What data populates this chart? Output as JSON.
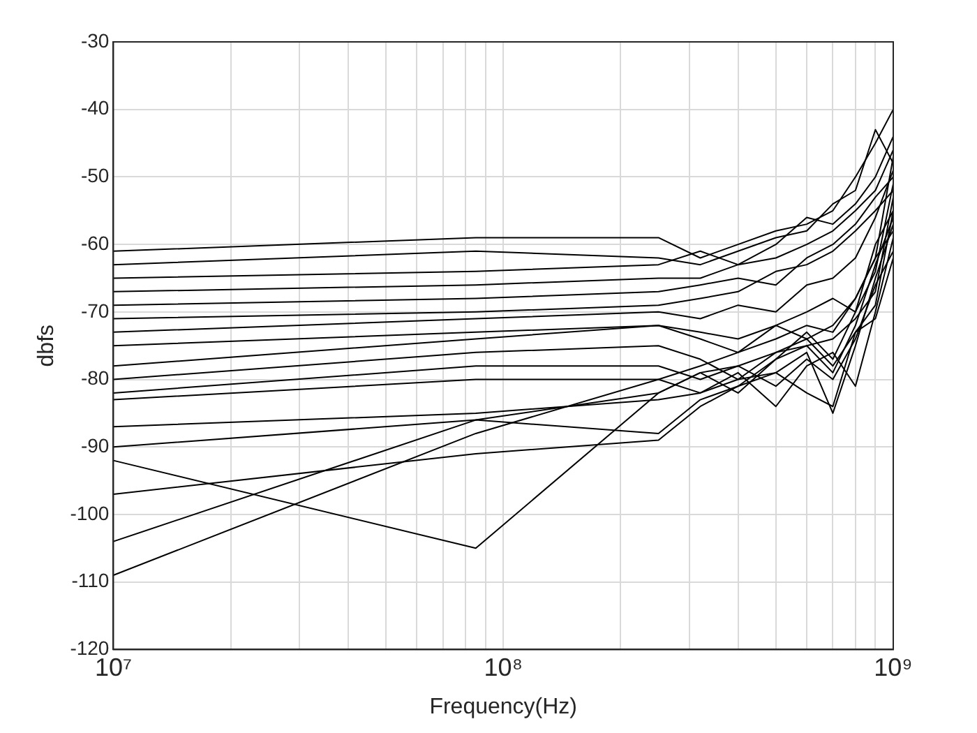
{
  "chart_data": {
    "type": "line",
    "xlabel": "Frequency(Hz)",
    "ylabel": "dbfs",
    "log": "x",
    "grid": true,
    "legend": false,
    "marker": "none",
    "line_style": "solid",
    "xlim": [
      10000000,
      1000000000
    ],
    "xticks": [
      {
        "value": 10000000,
        "label": "10⁷"
      },
      {
        "value": 20000000,
        "label": null
      },
      {
        "value": 30000000,
        "label": null
      },
      {
        "value": 40000000,
        "label": null
      },
      {
        "value": 50000000,
        "label": null
      },
      {
        "value": 60000000,
        "label": null
      },
      {
        "value": 70000000,
        "label": null
      },
      {
        "value": 80000000,
        "label": null
      },
      {
        "value": 90000000,
        "label": null
      },
      {
        "value": 100000000,
        "label": "10⁸"
      },
      {
        "value": 200000000,
        "label": null
      },
      {
        "value": 300000000,
        "label": null
      },
      {
        "value": 400000000,
        "label": null
      },
      {
        "value": 500000000,
        "label": null
      },
      {
        "value": 600000000,
        "label": null
      },
      {
        "value": 700000000,
        "label": null
      },
      {
        "value": 800000000,
        "label": null
      },
      {
        "value": 900000000,
        "label": null
      },
      {
        "value": 1000000000,
        "label": "10⁹"
      }
    ],
    "ylim": [
      -120,
      -30
    ],
    "yticks": [
      -120,
      -110,
      -100,
      -90,
      -80,
      -70,
      -60,
      -50,
      -40,
      -30
    ],
    "x": [
      10000000,
      85000000,
      250000000,
      320000000,
      400000000,
      500000000,
      600000000,
      700000000,
      800000000,
      900000000,
      1000000000
    ],
    "series": [
      {
        "color": "#000000",
        "values": [
          -61,
          -59,
          -59,
          -62,
          -60,
          -58,
          -57,
          -55,
          -50,
          -45,
          -40
        ]
      },
      {
        "color": "#000000",
        "values": [
          -63,
          -61,
          -62,
          -63,
          -61,
          -59,
          -58,
          -54,
          -52,
          -43,
          -48
        ]
      },
      {
        "color": "#000000",
        "values": [
          -65,
          -64,
          -63,
          -61,
          -63,
          -60,
          -56,
          -57,
          -54,
          -50,
          -44
        ]
      },
      {
        "color": "#000000",
        "values": [
          -67,
          -66,
          -65,
          -65,
          -63,
          -62,
          -60,
          -58,
          -55,
          -52,
          -46
        ]
      },
      {
        "color": "#000000",
        "values": [
          -69,
          -68,
          -67,
          -66,
          -65,
          -66,
          -62,
          -60,
          -57,
          -53,
          -50
        ]
      },
      {
        "color": "#000000",
        "values": [
          -71,
          -70,
          -69,
          -68,
          -67,
          -64,
          -63,
          -61,
          -58,
          -55,
          -52
        ]
      },
      {
        "color": "#000000",
        "values": [
          -73,
          -71,
          -70,
          -71,
          -69,
          -70,
          -66,
          -65,
          -62,
          -56,
          -49
        ]
      },
      {
        "color": "#000000",
        "values": [
          -75,
          -73,
          -72,
          -73,
          -74,
          -72,
          -70,
          -68,
          -70,
          -60,
          -55
        ]
      },
      {
        "color": "#000000",
        "values": [
          -78,
          -74,
          -72,
          -74,
          -76,
          -72,
          -74,
          -72,
          -68,
          -62,
          -58
        ]
      },
      {
        "color": "#000000",
        "values": [
          -80,
          -76,
          -75,
          -77,
          -80,
          -76,
          -75,
          -79,
          -72,
          -63,
          -56
        ]
      },
      {
        "color": "#000000",
        "values": [
          -82,
          -78,
          -78,
          -80,
          -78,
          -81,
          -77,
          -80,
          -74,
          -66,
          -61
        ]
      },
      {
        "color": "#000000",
        "values": [
          -83,
          -80,
          -80,
          -82,
          -79,
          -84,
          -78,
          -76,
          -81,
          -70,
          -59
        ]
      },
      {
        "color": "#000000",
        "values": [
          -87,
          -85,
          -83,
          -82,
          -80,
          -79,
          -82,
          -84,
          -73,
          -71,
          -62
        ]
      },
      {
        "color": "#000000",
        "values": [
          -90,
          -86,
          -88,
          -83,
          -81,
          -79,
          -76,
          -85,
          -75,
          -65,
          -57
        ]
      },
      {
        "color": "#000000",
        "values": [
          -92,
          -105,
          -82,
          -79,
          -78,
          -76,
          -74,
          -78,
          -73,
          -69,
          -55
        ]
      },
      {
        "color": "#000000",
        "values": [
          -97,
          -91,
          -89,
          -84,
          -81,
          -77,
          -75,
          -74,
          -71,
          -67,
          -53
        ]
      },
      {
        "color": "#000000",
        "values": [
          -109,
          -88,
          -80,
          -78,
          -76,
          -74,
          -72,
          -73,
          -68,
          -62,
          -47
        ]
      },
      {
        "color": "#000000",
        "values": [
          -104,
          -86,
          -82,
          -79,
          -82,
          -77,
          -73,
          -77,
          -70,
          -64,
          -51
        ]
      }
    ]
  }
}
